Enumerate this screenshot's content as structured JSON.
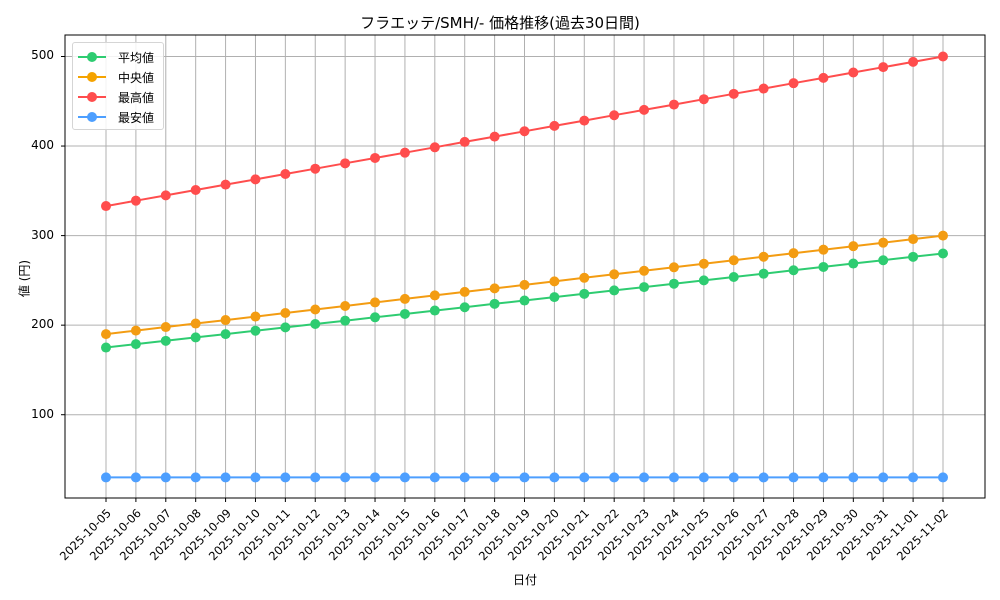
{
  "chart_data": {
    "type": "line",
    "title": "フラエッテ/SMH/- 価格推移(過去30日間)",
    "xlabel": "日付",
    "ylabel": "値 (円)",
    "ylim": [
      7,
      524
    ],
    "yticks": [
      100,
      200,
      300,
      400,
      500
    ],
    "grid": true,
    "legend_position": "upper left",
    "categories": [
      "2025-10-05",
      "2025-10-06",
      "2025-10-07",
      "2025-10-08",
      "2025-10-09",
      "2025-10-10",
      "2025-10-11",
      "2025-10-12",
      "2025-10-13",
      "2025-10-14",
      "2025-10-15",
      "2025-10-16",
      "2025-10-17",
      "2025-10-18",
      "2025-10-19",
      "2025-10-20",
      "2025-10-21",
      "2025-10-22",
      "2025-10-23",
      "2025-10-24",
      "2025-10-25",
      "2025-10-26",
      "2025-10-27",
      "2025-10-28",
      "2025-10-29",
      "2025-10-30",
      "2025-10-31",
      "2025-11-01",
      "2025-11-02"
    ],
    "series": [
      {
        "name": "平均値",
        "color": "#2ecc71",
        "values": [
          175,
          178.8,
          182.5,
          186.3,
          190,
          193.8,
          197.5,
          201.3,
          205,
          208.8,
          212.5,
          216.3,
          220,
          223.8,
          227.5,
          231.3,
          235,
          238.8,
          242.5,
          246.3,
          250,
          253.8,
          257.5,
          261.3,
          265,
          268.8,
          272.5,
          276.3,
          280
        ]
      },
      {
        "name": "中央値",
        "color": "#f39c12",
        "values": [
          190,
          193.9,
          197.9,
          201.8,
          205.7,
          209.6,
          213.6,
          217.5,
          221.4,
          225.4,
          229.3,
          233.2,
          237.1,
          241.1,
          245,
          248.9,
          252.9,
          256.8,
          260.7,
          264.6,
          268.6,
          272.5,
          276.4,
          280.4,
          284.3,
          288.2,
          292.1,
          296.1,
          300
        ]
      },
      {
        "name": "最高値",
        "color": "#ff4d4d",
        "values": [
          333,
          339,
          344.9,
          350.9,
          356.9,
          362.8,
          368.8,
          374.7,
          380.7,
          386.7,
          392.6,
          398.6,
          404.6,
          410.5,
          416.5,
          422.5,
          428.4,
          434.4,
          440.4,
          446.3,
          452.3,
          458.3,
          464.2,
          470.2,
          476.1,
          482.1,
          488.1,
          494,
          500
        ]
      },
      {
        "name": "最安値",
        "color": "#4d9fff",
        "values": [
          30,
          30,
          30,
          30,
          30,
          30,
          30,
          30,
          30,
          30,
          30,
          30,
          30,
          30,
          30,
          30,
          30,
          30,
          30,
          30,
          30,
          30,
          30,
          30,
          30,
          30,
          30,
          30,
          30
        ]
      }
    ]
  }
}
